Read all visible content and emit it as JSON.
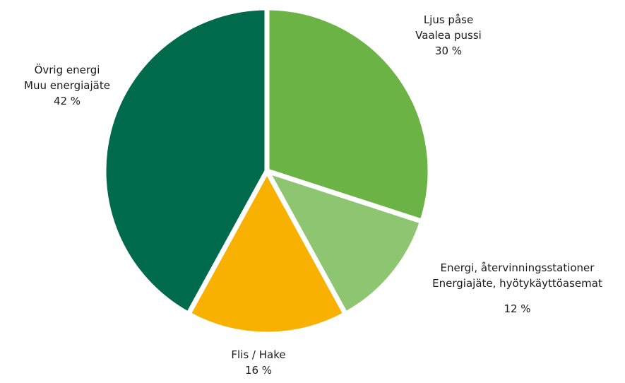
{
  "chart_data": {
    "type": "pie",
    "slices": [
      {
        "label_lines": [
          "Ljus påse",
          "Vaalea pussi"
        ],
        "value_label": "30 %",
        "value": 30,
        "color": "#6ab344"
      },
      {
        "label_lines": [
          "Energi, återvinningsstationer",
          "Energiajäte, hyötykäyttöasemat"
        ],
        "value_label": "12 %",
        "value": 12,
        "color": "#8dc571"
      },
      {
        "label_lines": [
          "Flis / Hake"
        ],
        "value_label": "16 %",
        "value": 16,
        "color": "#f8b100"
      },
      {
        "label_lines": [
          "Övrig energi",
          "Muu energiajäte"
        ],
        "value_label": "42 %",
        "value": 42,
        "color": "#006a4c"
      }
    ]
  }
}
